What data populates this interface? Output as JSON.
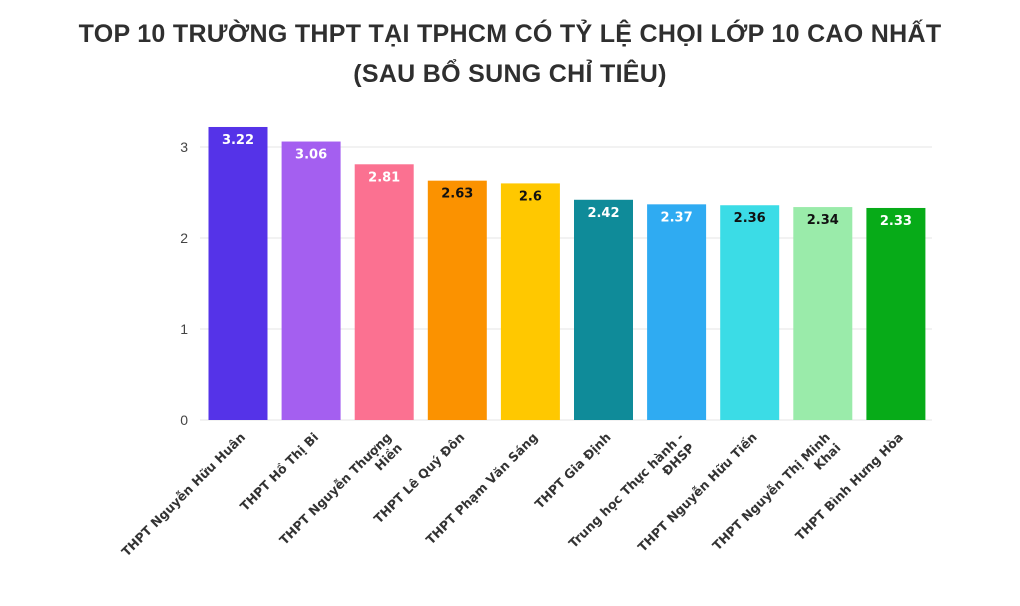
{
  "header": {
    "title_line1": "TOP 10 TRƯỜNG THPT TẠI TPHCM CÓ TỶ LỆ CHỌI LỚP 10 CAO NHẤT",
    "title_line2": "(SAU BỔ SUNG CHỈ TIÊU)"
  },
  "chart_data": {
    "type": "bar",
    "title": "TOP 10 TRƯỜNG THPT TẠI TPHCM CÓ TỶ LỆ CHỌI LỚP 10 CAO NHẤT (SAU BỔ SUNG CHỈ TIÊU)",
    "xlabel": "",
    "ylabel": "",
    "ylim": [
      0,
      3.35
    ],
    "yticks": [
      0,
      1,
      2,
      3
    ],
    "grid": true,
    "legend": "none",
    "categories": [
      "THPT Nguyễn Hữu Huân",
      "THPT Hồ Thị Bi",
      "THPT Nguyễn Thượng Hiền",
      "THPT Lê Quý Đôn",
      "THPT Phạm Văn Sáng",
      "THPT Gia Định",
      "Trung học Thực hành - ĐHSP",
      "THPT Nguyễn Hữu Tiến",
      "THPT Nguyễn Thị Minh Khai",
      "THPT Bình Hưng Hòa"
    ],
    "category_lines": [
      [
        "THPT Nguyễn Hữu Huân"
      ],
      [
        "THPT Hồ Thị Bi"
      ],
      [
        "THPT Nguyễn Thượng",
        "Hiền"
      ],
      [
        "THPT Lê Quý Đôn"
      ],
      [
        "THPT Phạm Văn Sáng"
      ],
      [
        "THPT Gia Định"
      ],
      [
        "Trung học Thực hành -",
        "ĐHSP"
      ],
      [
        "THPT Nguyễn Hữu Tiến"
      ],
      [
        "THPT Nguyễn Thị Minh",
        "Khai"
      ],
      [
        "THPT Bình Hưng Hòa"
      ]
    ],
    "values": [
      3.22,
      3.06,
      2.81,
      2.63,
      2.6,
      2.42,
      2.37,
      2.36,
      2.34,
      2.33
    ],
    "value_labels": [
      "3.22",
      "3.06",
      "2.81",
      "2.63",
      "2.6",
      "2.42",
      "2.37",
      "2.36",
      "2.34",
      "2.33"
    ],
    "colors": [
      "#5533e8",
      "#a45ff0",
      "#fb7191",
      "#fb9200",
      "#ffc800",
      "#0f8b99",
      "#2fabf2",
      "#3bdce6",
      "#9aebaa",
      "#07ab18"
    ],
    "label_colors": [
      "#ffffff",
      "#ffffff",
      "#ffffff",
      "#111111",
      "#111111",
      "#ffffff",
      "#ffffff",
      "#111111",
      "#111111",
      "#ffffff"
    ]
  }
}
